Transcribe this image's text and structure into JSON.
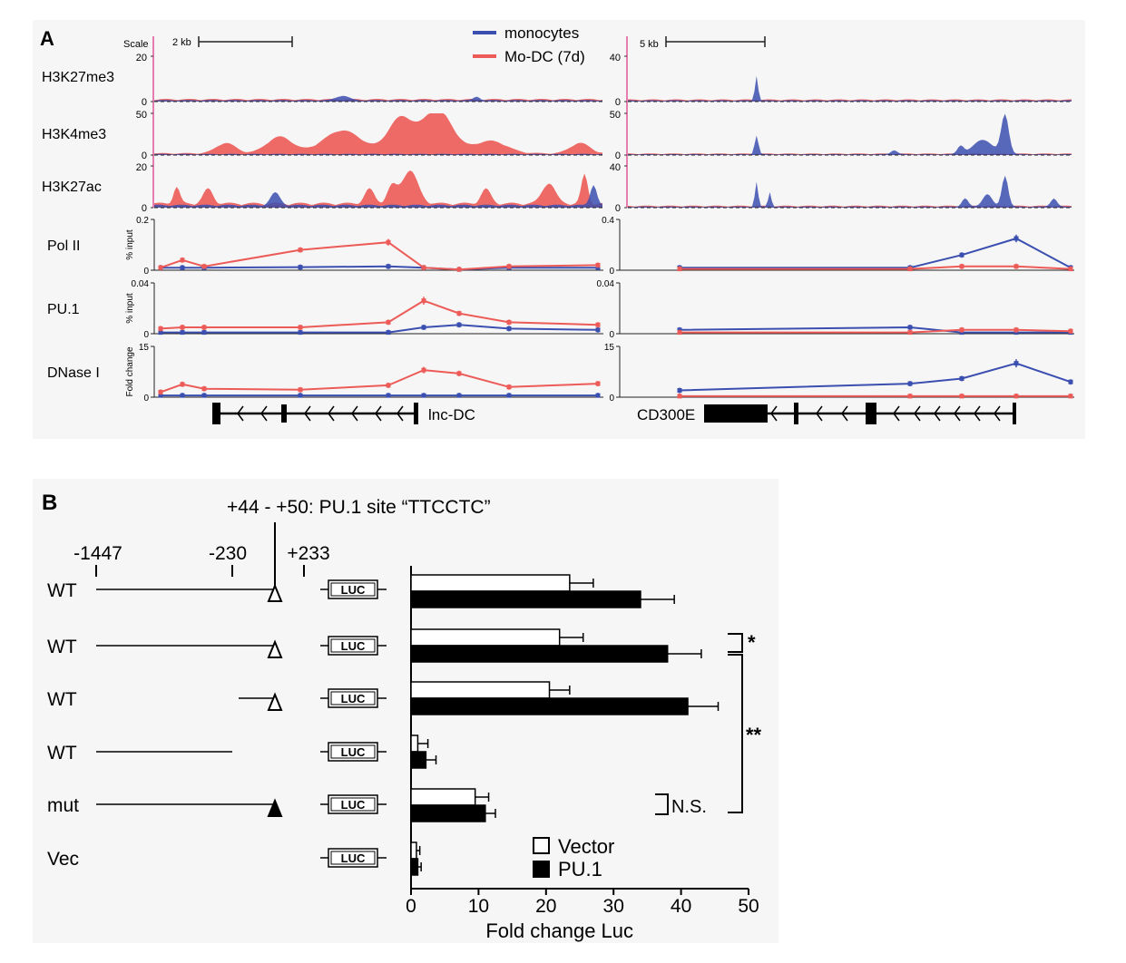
{
  "panel_a": {
    "label": "A",
    "legend": {
      "monocytes": "monocytes",
      "modc": "Mo-DC (7d)"
    },
    "colors": {
      "monocytes": "#3b4fb0",
      "modc": "#ec5b57",
      "overlap": "#3a2a63",
      "track_axis": "#e0559a"
    },
    "left": {
      "scale_label": "Scale",
      "scale_bar": "2 kb",
      "tracks": [
        {
          "name": "H3K27me3",
          "max": "20",
          "min": "0"
        },
        {
          "name": "H3K4me3",
          "max": "50",
          "min": "0"
        },
        {
          "name": "H3K27ac",
          "max": "20",
          "min": "0"
        }
      ],
      "chip": [
        {
          "name": "Pol II",
          "axis_title": "% input",
          "max": "0.2",
          "min": "0"
        },
        {
          "name": "PU.1",
          "axis_title": "% input",
          "max": "0.04",
          "min": "0"
        },
        {
          "name": "DNase I",
          "axis_title": "Fold change",
          "max": "15",
          "min": "0"
        }
      ],
      "gene": "lnc-DC"
    },
    "right": {
      "scale_bar": "5 kb",
      "tracks": [
        {
          "max": "40",
          "min": "0"
        },
        {
          "max": "50",
          "min": "0"
        },
        {
          "max": "40",
          "min": "0"
        }
      ],
      "chip": [
        {
          "max": "0.4",
          "min": "0"
        },
        {
          "max": "0.04",
          "min": "0"
        },
        {
          "max": "15",
          "min": "0"
        }
      ],
      "gene": "CD300E"
    }
  },
  "panel_b": {
    "label": "B",
    "site_label": "+44 - +50: PU.1 site “TTCCTC”",
    "coords": {
      "a": "-1447",
      "b": "-230",
      "c": "+233"
    },
    "luc_label": "LUC",
    "constructs": [
      {
        "label": "WT"
      },
      {
        "label": "WT"
      },
      {
        "label": "WT"
      },
      {
        "label": "WT"
      },
      {
        "label": "mut"
      },
      {
        "label": "Vec"
      }
    ],
    "significance": {
      "star1": "*",
      "star2": "**",
      "ns": "N.S."
    },
    "legend": {
      "vector": "Vector",
      "pu1": "PU.1"
    }
  },
  "chart_data": [
    {
      "type": "line",
      "title": "Pol II (lnc-DC locus)",
      "ylabel": "% input",
      "ylim": [
        0,
        0.2
      ],
      "series": [
        {
          "name": "monocytes",
          "x": [
            1,
            2,
            3,
            4,
            5,
            6,
            7,
            8,
            9
          ],
          "values": [
            0.01,
            0.01,
            0.01,
            0.012,
            0.015,
            0.01,
            0.003,
            0.01,
            0.01
          ]
        },
        {
          "name": "Mo-DC (7d)",
          "x": [
            1,
            2,
            3,
            4,
            5,
            6,
            7,
            8,
            9
          ],
          "values": [
            0.01,
            0.04,
            0.015,
            0.08,
            0.11,
            0.01,
            0.003,
            0.015,
            0.02
          ]
        }
      ]
    },
    {
      "type": "line",
      "title": "PU.1 (lnc-DC locus)",
      "ylabel": "% input",
      "ylim": [
        0,
        0.04
      ],
      "series": [
        {
          "name": "monocytes",
          "x": [
            1,
            2,
            3,
            4,
            5,
            6,
            7,
            8,
            9
          ],
          "values": [
            0.001,
            0.001,
            0.001,
            0.001,
            0.001,
            0.005,
            0.007,
            0.004,
            0.003
          ]
        },
        {
          "name": "Mo-DC (7d)",
          "x": [
            1,
            2,
            3,
            4,
            5,
            6,
            7,
            8,
            9
          ],
          "values": [
            0.004,
            0.005,
            0.005,
            0.005,
            0.009,
            0.026,
            0.016,
            0.009,
            0.007
          ]
        }
      ]
    },
    {
      "type": "line",
      "title": "DNase I (lnc-DC locus)",
      "ylabel": "Fold change",
      "ylim": [
        0,
        15
      ],
      "series": [
        {
          "name": "monocytes",
          "x": [
            1,
            2,
            3,
            4,
            5,
            6,
            7,
            8,
            9
          ],
          "values": [
            0.5,
            0.5,
            0.5,
            0.5,
            0.5,
            0.5,
            0.5,
            0.5,
            0.5
          ]
        },
        {
          "name": "Mo-DC (7d)",
          "x": [
            1,
            2,
            3,
            4,
            5,
            6,
            7,
            8,
            9
          ],
          "values": [
            1.5,
            3.8,
            2.5,
            2.2,
            3.5,
            8.0,
            7.0,
            3.0,
            4.0
          ]
        }
      ]
    },
    {
      "type": "line",
      "title": "Pol II (CD300E locus)",
      "ylabel": "% input",
      "ylim": [
        0,
        0.4
      ],
      "series": [
        {
          "name": "monocytes",
          "x": [
            1,
            2,
            3,
            4,
            5
          ],
          "values": [
            0.02,
            0.02,
            0.12,
            0.25,
            0.02
          ]
        },
        {
          "name": "Mo-DC (7d)",
          "x": [
            1,
            2,
            3,
            4,
            5
          ],
          "values": [
            0.01,
            0.01,
            0.03,
            0.03,
            0.01
          ]
        }
      ]
    },
    {
      "type": "line",
      "title": "PU.1 (CD300E locus)",
      "ylabel": "% input",
      "ylim": [
        0,
        0.04
      ],
      "series": [
        {
          "name": "monocytes",
          "x": [
            1,
            2,
            3,
            4,
            5
          ],
          "values": [
            0.003,
            0.005,
            0.001,
            0.001,
            0.001
          ]
        },
        {
          "name": "Mo-DC (7d)",
          "x": [
            1,
            2,
            3,
            4,
            5
          ],
          "values": [
            0.001,
            0.001,
            0.003,
            0.003,
            0.002
          ]
        }
      ]
    },
    {
      "type": "line",
      "title": "DNase I (CD300E locus)",
      "ylabel": "Fold change",
      "ylim": [
        0,
        15
      ],
      "series": [
        {
          "name": "monocytes",
          "x": [
            1,
            2,
            3,
            4,
            5
          ],
          "values": [
            2.0,
            4.0,
            5.5,
            10.0,
            4.5
          ]
        },
        {
          "name": "Mo-DC (7d)",
          "x": [
            1,
            2,
            3,
            4,
            5
          ],
          "values": [
            0.3,
            0.3,
            0.3,
            0.3,
            0.3
          ]
        }
      ]
    },
    {
      "type": "bar",
      "orientation": "horizontal",
      "categories": [
        "WT -1447/+233",
        "WT -230/+233",
        "WT +50/+233",
        "WT -1447/-230",
        "mut",
        "Vec"
      ],
      "series": [
        {
          "name": "Vector",
          "values": [
            23.5,
            22,
            20.5,
            1,
            9.5,
            0.8
          ],
          "errors": [
            3.5,
            3.5,
            3,
            1.5,
            2,
            0.5
          ],
          "color": "#ffffff"
        },
        {
          "name": "PU.1",
          "values": [
            34,
            38,
            41,
            2.2,
            11,
            1
          ],
          "errors": [
            5,
            5,
            4.5,
            1.5,
            1.5,
            0.5
          ],
          "color": "#000000"
        }
      ],
      "xlabel": "Fold change Luc",
      "xlim": [
        0,
        50
      ],
      "xticks": [
        "0",
        "10",
        "20",
        "30",
        "40",
        "50"
      ]
    }
  ]
}
